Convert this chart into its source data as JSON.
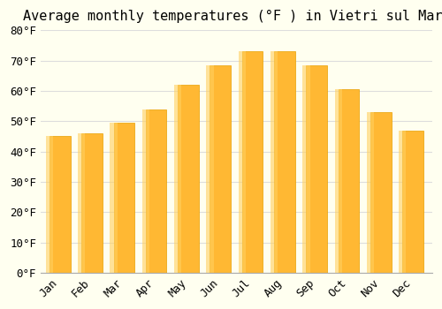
{
  "title": "Average monthly temperatures (°F ) in Vietri sul Mare",
  "months": [
    "Jan",
    "Feb",
    "Mar",
    "Apr",
    "May",
    "Jun",
    "Jul",
    "Aug",
    "Sep",
    "Oct",
    "Nov",
    "Dec"
  ],
  "values": [
    45,
    46,
    49.5,
    54,
    62,
    68.5,
    73,
    73,
    68.5,
    60.5,
    53,
    47
  ],
  "bar_color_top": "#FFA500",
  "bar_color_bottom": "#FFD580",
  "ylim": [
    0,
    80
  ],
  "yticks": [
    0,
    10,
    20,
    30,
    40,
    50,
    60,
    70,
    80
  ],
  "ytick_labels": [
    "0°F",
    "10°F",
    "20°F",
    "30°F",
    "40°F",
    "50°F",
    "60°F",
    "70°F",
    "80°F"
  ],
  "background_color": "#FFFFF0",
  "plot_bg_color": "#FFFFF0",
  "grid_color": "#DDDDDD",
  "title_fontsize": 11,
  "tick_fontsize": 9,
  "bar_edge_color": "#E8A000"
}
